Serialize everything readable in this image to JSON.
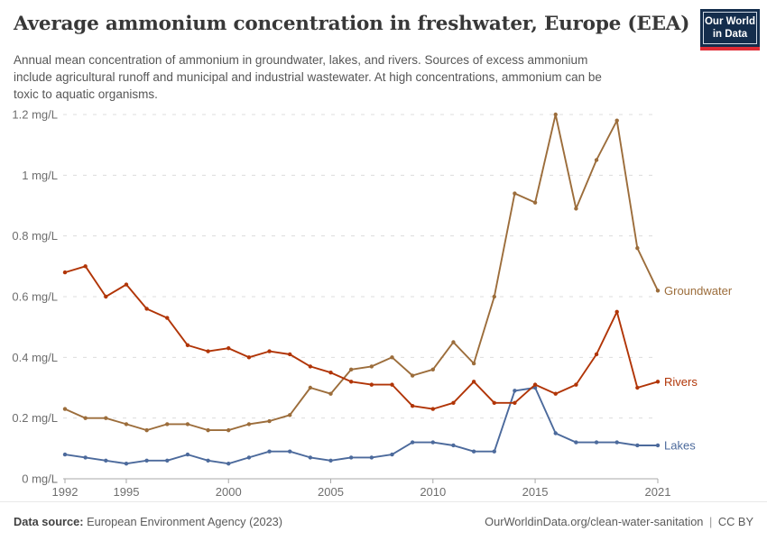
{
  "header": {
    "title": "Average ammonium concentration in freshwater, Europe (EEA)",
    "subtitle_lines": [
      "Annual mean concentration of ammonium in groundwater, lakes, and rivers. Sources of excess ammonium",
      "include agricultural runoff and municipal and industrial wastewater. At high concentrations, ammonium can be",
      "toxic to aquatic organisms."
    ],
    "logo": {
      "line1": "Our World",
      "line2": "in Data",
      "bg": "#142D4C",
      "stripe": "#E02B35"
    }
  },
  "chart_data": {
    "type": "line",
    "title": "Average ammonium concentration in freshwater, Europe (EEA)",
    "unit": "mg/L",
    "x": [
      1992,
      1993,
      1994,
      1995,
      1996,
      1997,
      1998,
      1999,
      2000,
      2001,
      2002,
      2003,
      2004,
      2005,
      2006,
      2007,
      2008,
      2009,
      2010,
      2011,
      2012,
      2013,
      2014,
      2015,
      2016,
      2017,
      2018,
      2019,
      2020,
      2021
    ],
    "series": [
      {
        "name": "Lakes",
        "color": "#4C6A9C",
        "values": [
          0.08,
          0.07,
          0.06,
          0.05,
          0.06,
          0.06,
          0.08,
          0.06,
          0.05,
          0.07,
          0.09,
          0.09,
          0.07,
          0.06,
          0.07,
          0.07,
          0.08,
          0.12,
          0.12,
          0.11,
          0.09,
          0.09,
          0.29,
          0.3,
          0.15,
          0.12,
          0.12,
          0.12,
          0.11,
          0.11
        ]
      },
      {
        "name": "Groundwater",
        "color": "#9C6D3B",
        "values": [
          0.23,
          0.2,
          0.2,
          0.18,
          0.16,
          0.18,
          0.18,
          0.16,
          0.16,
          0.18,
          0.19,
          0.21,
          0.3,
          0.28,
          0.36,
          0.37,
          0.4,
          0.34,
          0.36,
          0.45,
          0.38,
          0.6,
          0.94,
          0.91,
          1.2,
          0.89,
          1.05,
          1.18,
          0.76,
          0.62
        ]
      },
      {
        "name": "Rivers",
        "color": "#B13507",
        "values": [
          0.68,
          0.7,
          0.6,
          0.64,
          0.56,
          0.53,
          0.44,
          0.42,
          0.43,
          0.4,
          0.42,
          0.41,
          0.37,
          0.35,
          0.32,
          0.31,
          0.31,
          0.24,
          0.23,
          0.25,
          0.32,
          0.25,
          0.25,
          0.31,
          0.28,
          0.31,
          0.41,
          0.55,
          0.3,
          0.32
        ]
      }
    ],
    "ylim": [
      0,
      1.2
    ],
    "yticks": [
      0,
      0.2,
      0.4,
      0.6,
      0.8,
      1,
      1.2
    ],
    "ytick_labels": [
      "0 mg/L",
      "0.2 mg/L",
      "0.4 mg/L",
      "0.6 mg/L",
      "0.8 mg/L",
      "1 mg/L",
      "1.2 mg/L"
    ],
    "xticks": [
      1992,
      1995,
      2000,
      2005,
      2010,
      2015,
      2021
    ],
    "grid": "horizontal-dashed",
    "legend_position": "right-end-of-line-labels"
  },
  "footer": {
    "source_label": "Data source:",
    "source_value": "European Environment Agency (2023)",
    "credit": "OurWorldinData.org/clean-water-sanitation",
    "separator": "|",
    "license": "CC BY"
  }
}
